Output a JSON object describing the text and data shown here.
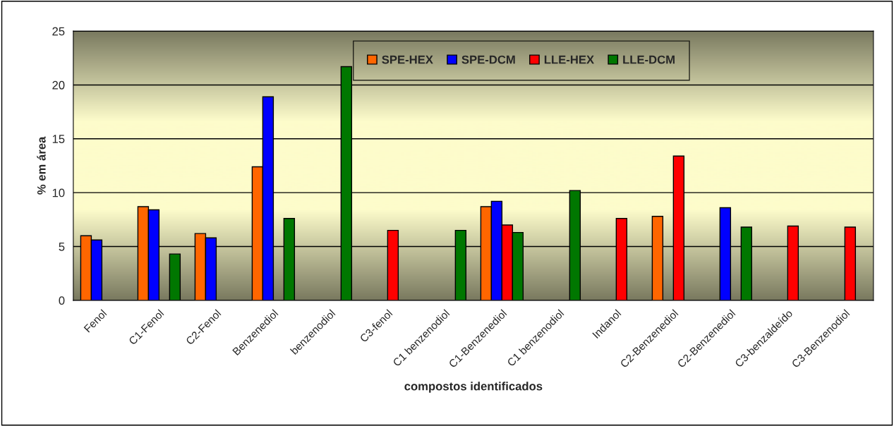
{
  "chart_data": {
    "type": "bar",
    "xlabel": "compostos identificados",
    "ylabel": "% em área",
    "categories": [
      "Fenol",
      "C1-Fenol",
      "C2-Fenol",
      "Benzenediol",
      "benzenodiol",
      "C3-fenol",
      "C1 benzenodiol",
      "C1-Benzenediol",
      "C1 benzenodiol",
      "Indanol",
      "C2-Benzenediol",
      "C2-Benzenediol",
      "C3-benzaldeído",
      "C3-Benzenodiol"
    ],
    "series": [
      {
        "name": "SPE-HEX",
        "color": "#ff6600",
        "values": [
          6.0,
          8.7,
          6.2,
          12.4,
          null,
          null,
          null,
          8.7,
          null,
          null,
          7.8,
          null,
          null,
          null
        ]
      },
      {
        "name": "SPE-DCM",
        "color": "#0000ff",
        "values": [
          5.6,
          8.4,
          5.8,
          18.9,
          null,
          null,
          null,
          9.2,
          null,
          null,
          null,
          8.6,
          null,
          null
        ]
      },
      {
        "name": "LLE-HEX",
        "color": "#ff0000",
        "values": [
          null,
          null,
          null,
          null,
          null,
          6.5,
          null,
          7.0,
          null,
          7.6,
          13.4,
          null,
          6.9,
          6.8
        ]
      },
      {
        "name": "LLE-DCM",
        "color": "#007700",
        "values": [
          null,
          4.3,
          null,
          7.6,
          21.7,
          null,
          6.5,
          6.3,
          10.2,
          null,
          null,
          6.8,
          null,
          null
        ]
      }
    ],
    "ylim": [
      0,
      25
    ],
    "yticks": [
      0,
      5,
      10,
      15,
      20,
      25
    ],
    "grid": "y",
    "legend": "top"
  }
}
